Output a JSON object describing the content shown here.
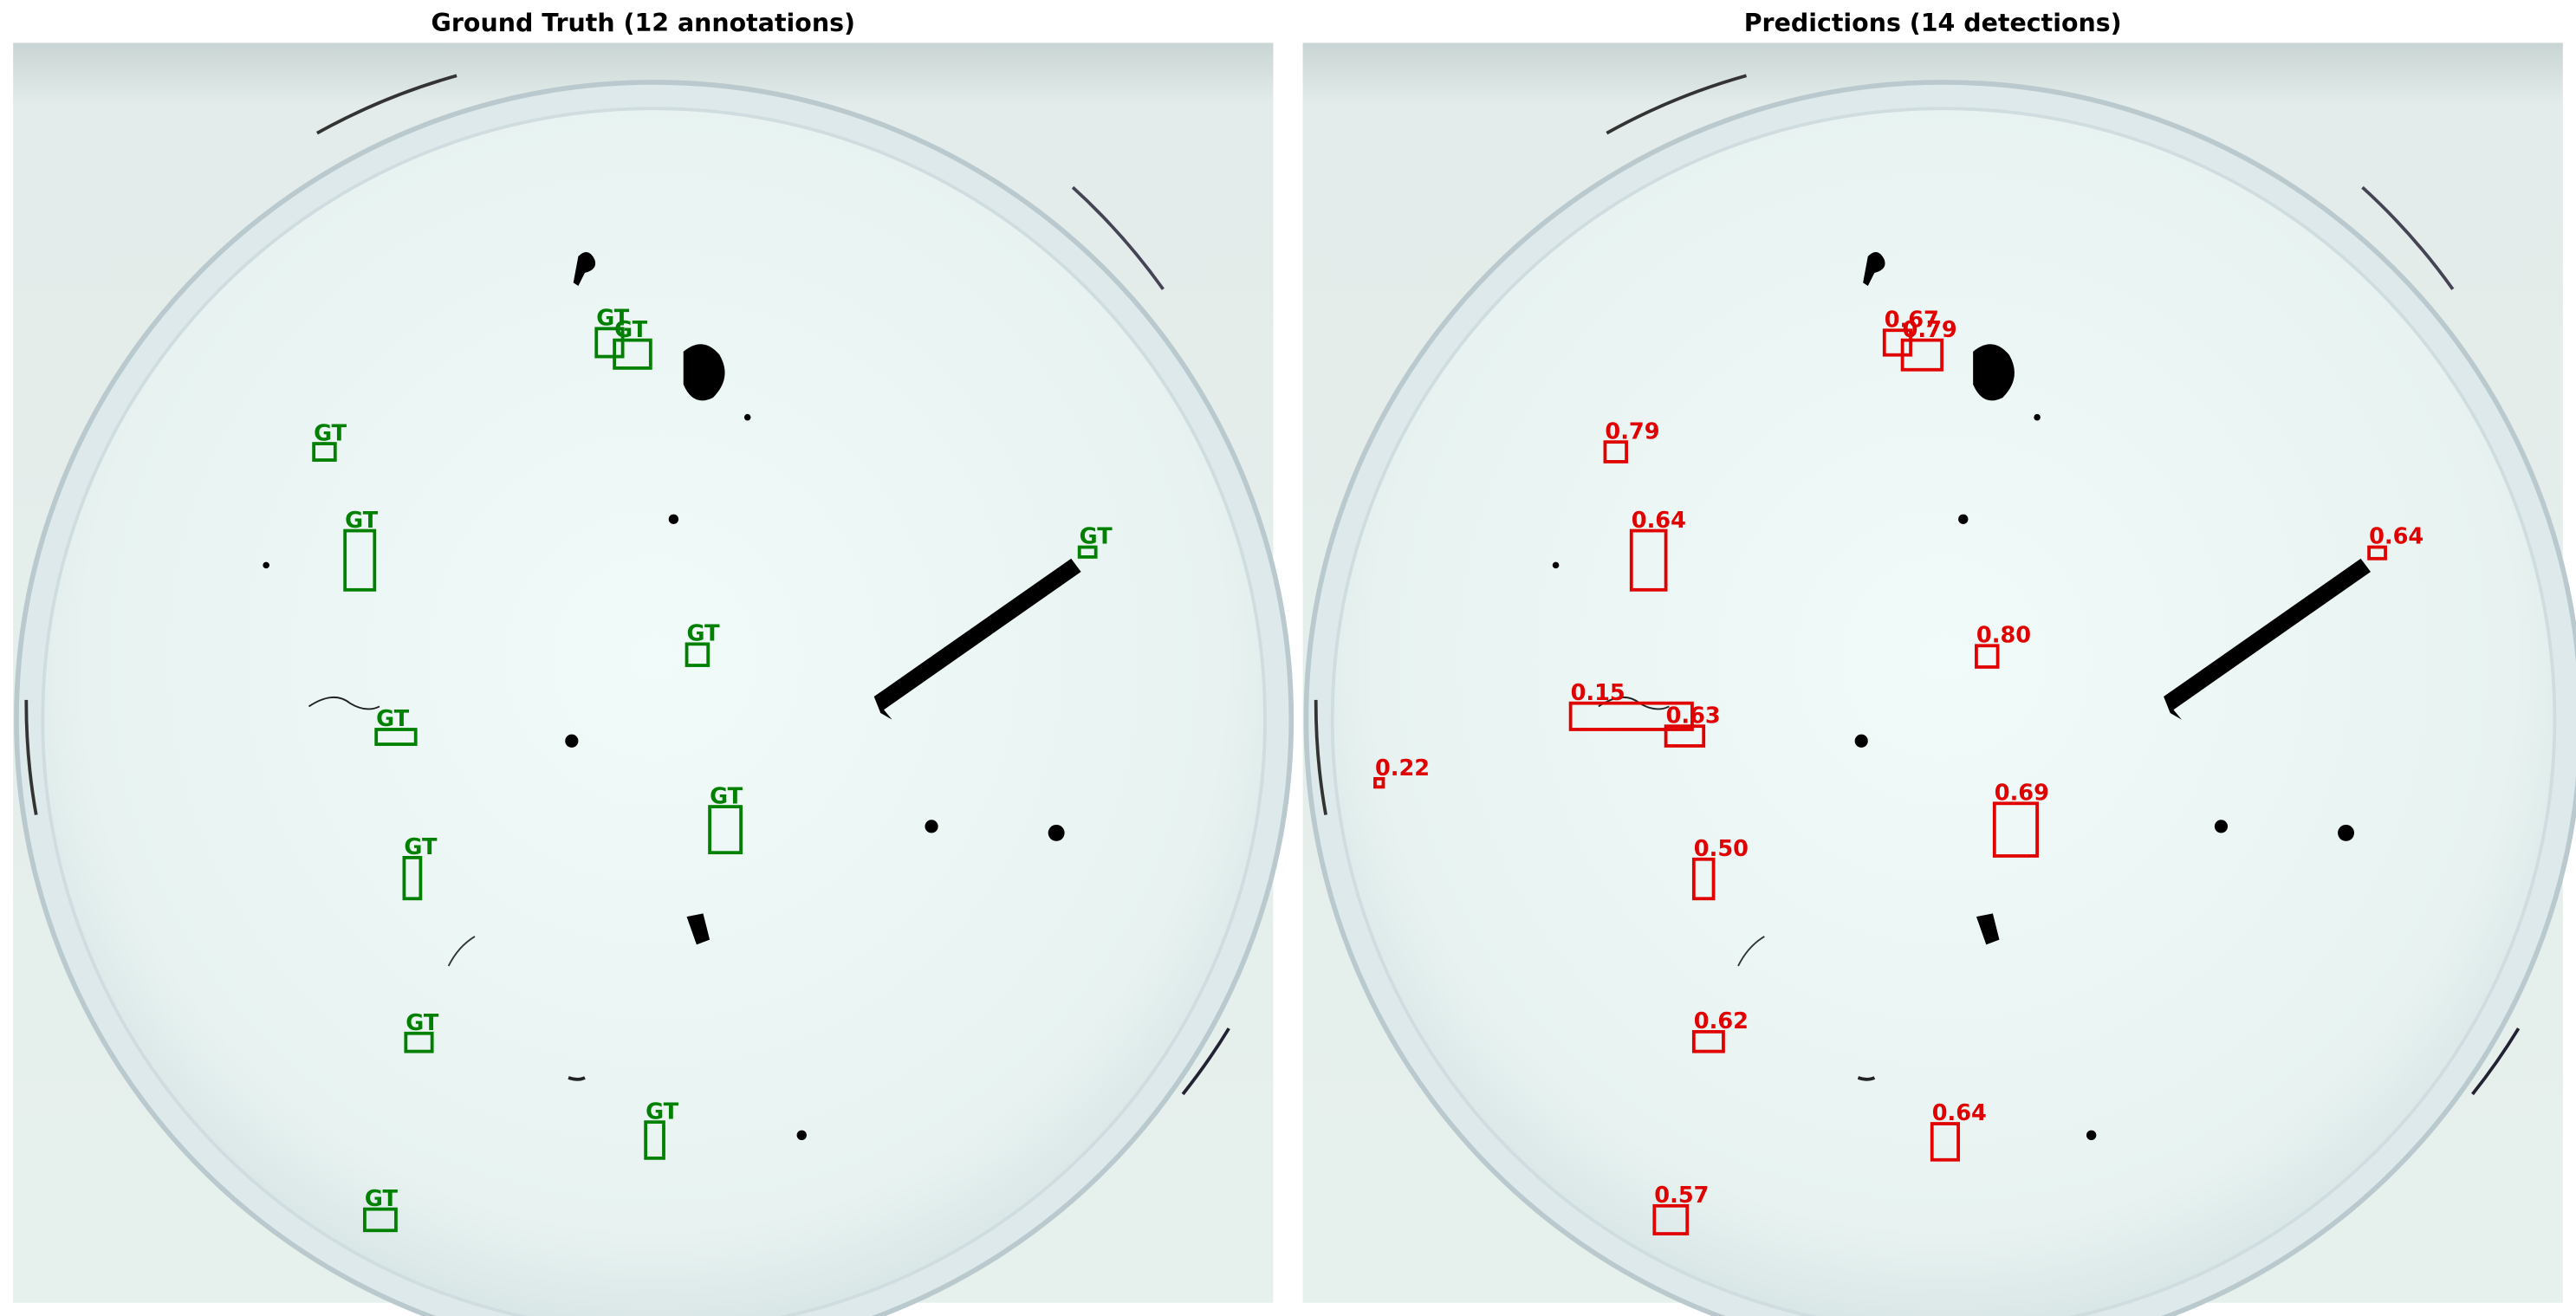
{
  "panels": [
    {
      "title": "Ground Truth (12 annotations)",
      "color": "#008000",
      "boxes": [
        {
          "label": "GT"
        },
        {
          "label": "GT"
        },
        {
          "label": "GT"
        },
        {
          "label": "GT"
        },
        {
          "label": "GT"
        },
        {
          "label": "GT"
        },
        {
          "label": "GT"
        },
        {
          "label": "GT"
        },
        {
          "label": "GT"
        },
        {
          "label": "GT"
        },
        {
          "label": "GT"
        },
        {
          "label": "GT"
        }
      ]
    },
    {
      "title": "Predictions (14 detections)",
      "color": "#e00000",
      "boxes": [
        {
          "label": "0.67"
        },
        {
          "label": "0.79"
        },
        {
          "label": "0.79"
        },
        {
          "label": "0.64"
        },
        {
          "label": "0.64"
        },
        {
          "label": "0.80"
        },
        {
          "label": "0.15"
        },
        {
          "label": "0.63"
        },
        {
          "label": "0.22"
        },
        {
          "label": "0.69"
        },
        {
          "label": "0.50"
        },
        {
          "label": "0.62"
        },
        {
          "label": "0.64"
        },
        {
          "label": "0.57"
        }
      ]
    }
  ]
}
